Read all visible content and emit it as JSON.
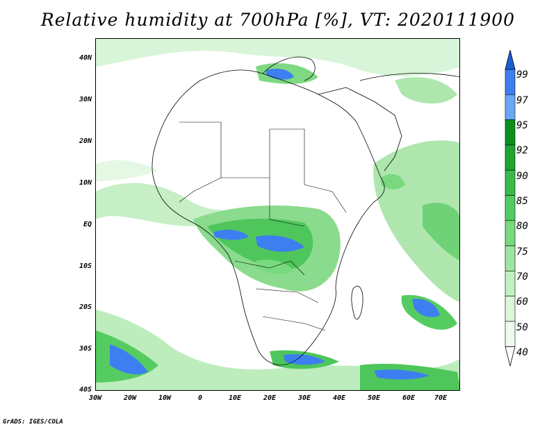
{
  "title": "Relative humidity at 700hPa [%], VT: 2020111900",
  "credit": "GrADS: IGES/COLA",
  "lat_labels": [
    "40N",
    "30N",
    "20N",
    "10N",
    "EQ",
    "10S",
    "20S",
    "30S",
    "40S"
  ],
  "lon_labels": [
    "30W",
    "20W",
    "10W",
    "0",
    "10E",
    "20E",
    "30E",
    "40E",
    "50E",
    "60E",
    "70E"
  ],
  "legend": {
    "levels": [
      "99",
      "97",
      "95",
      "92",
      "90",
      "85",
      "80",
      "75",
      "70",
      "60",
      "50",
      "40"
    ],
    "colors": [
      "#1a5fd6",
      "#3d7ff0",
      "#6aa8f5",
      "#0a8f1e",
      "#20a532",
      "#38bb4a",
      "#55cc62",
      "#79d97f",
      "#9fe5a2",
      "#c2f0c2",
      "#ddf7dc",
      "#f0fbef"
    ]
  },
  "fill_colors": {
    "land": "#ffffff",
    "ocean": "#ffffff",
    "coast": "#000000"
  }
}
